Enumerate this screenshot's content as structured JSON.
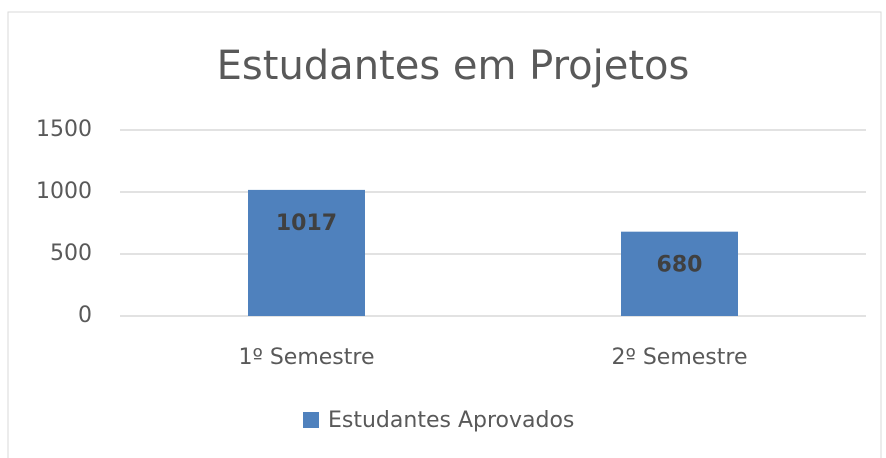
{
  "chart_data": {
    "type": "bar",
    "title": "Estudantes em Projetos",
    "categories": [
      "1º Semestre",
      "2º Semestre"
    ],
    "series": [
      {
        "name": "Estudantes Aprovados",
        "color": "#4f81bd",
        "values": [
          1017,
          680
        ]
      }
    ],
    "ylim": [
      0,
      1500
    ],
    "yticks": [
      0,
      500,
      1000,
      1500
    ],
    "grid": true,
    "legend": "bottom",
    "data_labels": true
  }
}
